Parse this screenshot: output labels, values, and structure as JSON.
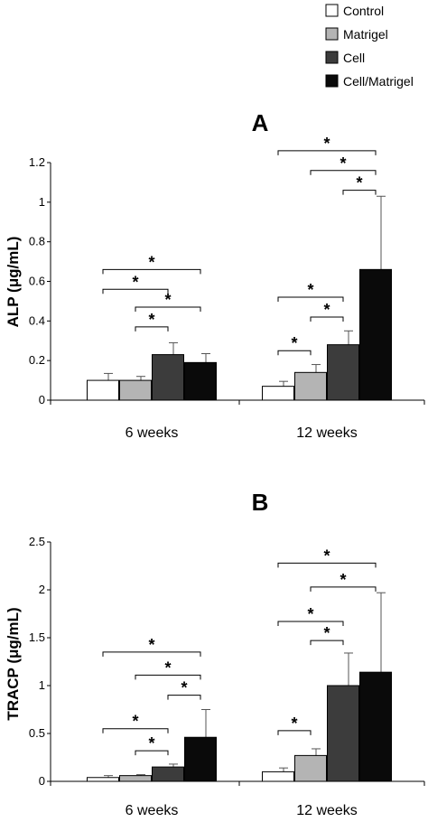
{
  "legend": [
    {
      "label": "Control",
      "color": "#ffffff"
    },
    {
      "label": "Matrigel",
      "color": "#b4b4b4"
    },
    {
      "label": "Cell",
      "color": "#3c3c3c"
    },
    {
      "label": "Cell/Matrigel",
      "color": "#0a0a0a"
    }
  ],
  "chart_data": [
    {
      "type": "bar",
      "panel_label": "A",
      "ylabel": "ALP (μg/mL)",
      "categories": [
        "6 weeks",
        "12 weeks"
      ],
      "ylim": [
        0,
        1.2
      ],
      "yticks": [
        "0",
        "0.2",
        "0.4",
        "0.6",
        "0.8",
        "1",
        "1.2"
      ],
      "series": [
        {
          "name": "Control",
          "values": [
            0.1,
            0.07
          ],
          "errors": [
            0.035,
            0.025
          ]
        },
        {
          "name": "Matrigel",
          "values": [
            0.1,
            0.14
          ],
          "errors": [
            0.02,
            0.04
          ]
        },
        {
          "name": "Cell",
          "values": [
            0.23,
            0.28
          ],
          "errors": [
            0.06,
            0.07
          ]
        },
        {
          "name": "Cell/Matrigel",
          "values": [
            0.19,
            0.66
          ],
          "errors": [
            0.045,
            0.37
          ]
        }
      ],
      "significance": [
        {
          "category": 0,
          "from": 0,
          "to": 3,
          "y": 0.66,
          "label": "*"
        },
        {
          "category": 0,
          "from": 0,
          "to": 2,
          "y": 0.56,
          "label": "*"
        },
        {
          "category": 0,
          "from": 1,
          "to": 3,
          "y": 0.47,
          "label": "*"
        },
        {
          "category": 0,
          "from": 1,
          "to": 2,
          "y": 0.37,
          "label": "*"
        },
        {
          "category": 1,
          "from": 0,
          "to": 3,
          "y": 1.26,
          "label": "*"
        },
        {
          "category": 1,
          "from": 1,
          "to": 3,
          "y": 1.16,
          "label": "*"
        },
        {
          "category": 1,
          "from": 2,
          "to": 3,
          "y": 1.06,
          "label": "*"
        },
        {
          "category": 1,
          "from": 0,
          "to": 2,
          "y": 0.52,
          "label": "*"
        },
        {
          "category": 1,
          "from": 1,
          "to": 2,
          "y": 0.42,
          "label": "*"
        },
        {
          "category": 1,
          "from": 0,
          "to": 1,
          "y": 0.25,
          "label": "*"
        }
      ]
    },
    {
      "type": "bar",
      "panel_label": "B",
      "ylabel": "TRACP (μg/mL)",
      "categories": [
        "6 weeks",
        "12 weeks"
      ],
      "ylim": [
        0,
        2.5
      ],
      "yticks": [
        "0",
        "0.5",
        "1",
        "1.5",
        "2",
        "2.5"
      ],
      "series": [
        {
          "name": "Control",
          "values": [
            0.04,
            0.1
          ],
          "errors": [
            0.02,
            0.04
          ]
        },
        {
          "name": "Matrigel",
          "values": [
            0.06,
            0.27
          ],
          "errors": [
            0.01,
            0.07
          ]
        },
        {
          "name": "Cell",
          "values": [
            0.15,
            1.0
          ],
          "errors": [
            0.03,
            0.34
          ]
        },
        {
          "name": "Cell/Matrigel",
          "values": [
            0.46,
            1.14
          ],
          "errors": [
            0.29,
            0.83
          ]
        }
      ],
      "significance": [
        {
          "category": 0,
          "from": 0,
          "to": 3,
          "y": 1.35,
          "label": "*"
        },
        {
          "category": 0,
          "from": 1,
          "to": 3,
          "y": 1.11,
          "label": "*"
        },
        {
          "category": 0,
          "from": 2,
          "to": 3,
          "y": 0.9,
          "label": "*"
        },
        {
          "category": 0,
          "from": 0,
          "to": 2,
          "y": 0.55,
          "label": "*"
        },
        {
          "category": 0,
          "from": 1,
          "to": 2,
          "y": 0.32,
          "label": "*"
        },
        {
          "category": 1,
          "from": 0,
          "to": 3,
          "y": 2.28,
          "label": "*"
        },
        {
          "category": 1,
          "from": 1,
          "to": 3,
          "y": 2.03,
          "label": "*"
        },
        {
          "category": 1,
          "from": 0,
          "to": 2,
          "y": 1.67,
          "label": "*"
        },
        {
          "category": 1,
          "from": 1,
          "to": 2,
          "y": 1.47,
          "label": "*"
        },
        {
          "category": 1,
          "from": 0,
          "to": 1,
          "y": 0.53,
          "label": "*"
        }
      ]
    }
  ]
}
